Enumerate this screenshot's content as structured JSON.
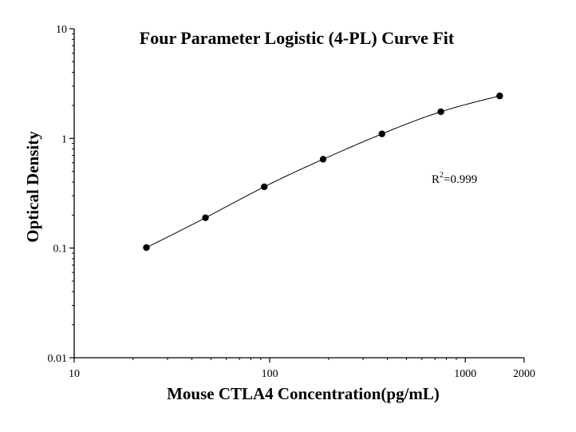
{
  "chart_data": {
    "type": "scatter",
    "title": "Four Parameter Logistic (4-PL) Curve Fit",
    "xlabel": "Mouse CTLA4 Concentration(pg/mL)",
    "ylabel": "Optical Density",
    "x_scale": "log",
    "y_scale": "log",
    "xlim": [
      10,
      2000
    ],
    "ylim": [
      0.01,
      10
    ],
    "x_ticks": [
      10,
      100,
      1000,
      2000
    ],
    "x_tick_labels": [
      "10",
      "100",
      "1000",
      "2000"
    ],
    "y_ticks": [
      0.01,
      0.1,
      1,
      10
    ],
    "y_tick_labels": [
      "0.01",
      "0.1",
      "1",
      "10"
    ],
    "grid": false,
    "legend": "none",
    "series": [
      {
        "points": [
          {
            "x": 23.4,
            "y": 0.101
          },
          {
            "x": 46.9,
            "y": 0.189
          },
          {
            "x": 93.75,
            "y": 0.362
          },
          {
            "x": 187.5,
            "y": 0.646
          },
          {
            "x": 375,
            "y": 1.1
          },
          {
            "x": 750,
            "y": 1.75
          },
          {
            "x": 1500,
            "y": 2.44
          }
        ],
        "fit": "4-PL curve"
      }
    ],
    "annotations": [
      {
        "text_base": "R",
        "text_sup": "2",
        "text_rest": "=0.999"
      }
    ]
  }
}
